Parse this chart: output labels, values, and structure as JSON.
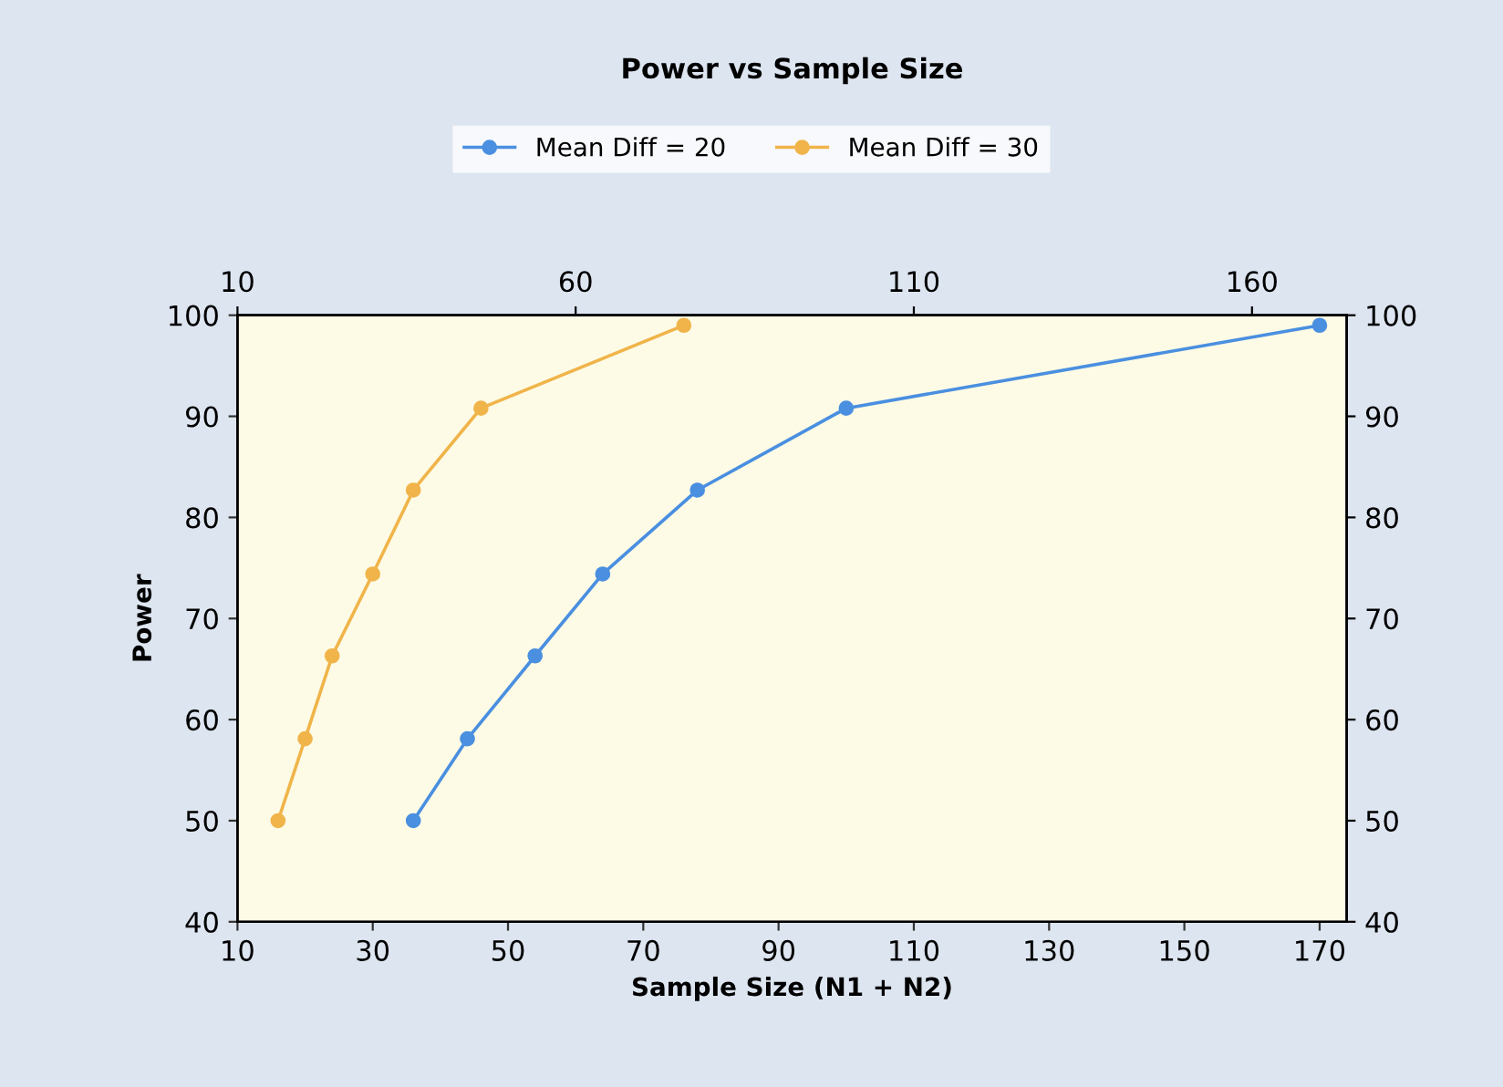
{
  "chart_data": {
    "type": "line",
    "title": "Power vs Sample Size",
    "xlabel": "Sample Size (N1 + N2)",
    "ylabel": "Power",
    "series": [
      {
        "name": "Mean Diff = 20",
        "color": "#4a8fe0",
        "x": [
          36,
          44,
          54,
          64,
          78,
          100,
          170
        ],
        "values": [
          50,
          58.1,
          66.3,
          74.4,
          82.7,
          90.8,
          99.0
        ]
      },
      {
        "name": "Mean Diff = 30",
        "color": "#f0b44a",
        "x": [
          16,
          20,
          24,
          30,
          36,
          46,
          76
        ],
        "values": [
          50,
          58.1,
          66.3,
          74.4,
          82.7,
          90.8,
          99.0
        ]
      }
    ],
    "xlim": [
      10,
      174
    ],
    "xticks": [
      10,
      30,
      50,
      70,
      90,
      110,
      130,
      150,
      170
    ],
    "x2lim": [
      10,
      174
    ],
    "x2ticks": [
      10,
      60,
      110,
      160
    ],
    "ylim": [
      40,
      100
    ],
    "yticks": [
      40,
      50,
      60,
      70,
      80,
      90,
      100
    ],
    "y2lim": [
      40,
      100
    ],
    "y2ticks": [
      40,
      50,
      60,
      70,
      80,
      90,
      100
    ],
    "marker": "circle",
    "line_style": "solid",
    "grid": false,
    "legend": "top"
  }
}
